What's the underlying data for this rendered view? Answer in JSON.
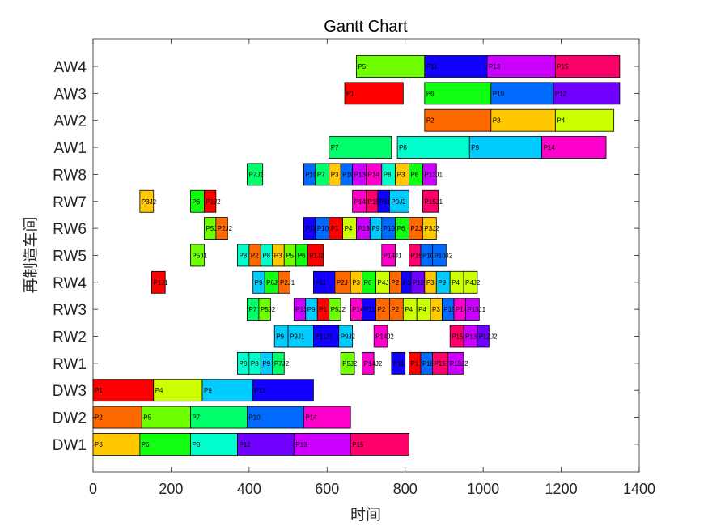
{
  "title": "Gantt Chart",
  "chart_data": {
    "type": "gantt",
    "title": "Gantt Chart",
    "xlabel": "时间",
    "ylabel": "再制造车间",
    "xlim": [
      0,
      1400
    ],
    "xticks": [
      0,
      200,
      400,
      600,
      800,
      1000,
      1200,
      1400
    ],
    "rows": [
      "DW1",
      "DW2",
      "DW3",
      "RW1",
      "RW2",
      "RW3",
      "RW4",
      "RW5",
      "RW6",
      "RW7",
      "RW8",
      "AW1",
      "AW2",
      "AW3",
      "AW4"
    ],
    "colors": {
      "P1": "#ff0000",
      "P2": "#ff6a00",
      "P3": "#ffc800",
      "P4": "#ccff00",
      "P5": "#6fff00",
      "P6": "#11ff11",
      "P7": "#00ff6a",
      "P8": "#00ffcc",
      "P9": "#00ccff",
      "P10": "#006aff",
      "P11": "#1100ff",
      "P12": "#6f00ff",
      "P13": "#cc00ff",
      "P14": "#ff00cc",
      "P15": "#ff006a"
    },
    "tasks": [
      {
        "row": "DW1",
        "label": "P3",
        "p": "P3",
        "start": 0,
        "end": 120
      },
      {
        "row": "DW1",
        "label": "P6",
        "p": "P6",
        "start": 120,
        "end": 250
      },
      {
        "row": "DW1",
        "label": "P8",
        "p": "P8",
        "start": 250,
        "end": 370
      },
      {
        "row": "DW1",
        "label": "P12",
        "p": "P12",
        "start": 370,
        "end": 515
      },
      {
        "row": "DW1",
        "label": "P13",
        "p": "P13",
        "start": 515,
        "end": 660
      },
      {
        "row": "DW1",
        "label": "P15",
        "p": "P15",
        "start": 660,
        "end": 810
      },
      {
        "row": "DW2",
        "label": "P2",
        "p": "P2",
        "start": 0,
        "end": 125
      },
      {
        "row": "DW2",
        "label": "P5",
        "p": "P5",
        "start": 125,
        "end": 250
      },
      {
        "row": "DW2",
        "label": "P7",
        "p": "P7",
        "start": 250,
        "end": 395
      },
      {
        "row": "DW2",
        "label": "P10",
        "p": "P10",
        "start": 395,
        "end": 540
      },
      {
        "row": "DW2",
        "label": "P14",
        "p": "P14",
        "start": 540,
        "end": 660
      },
      {
        "row": "DW3",
        "label": "P1",
        "p": "P1",
        "start": 0,
        "end": 155
      },
      {
        "row": "DW3",
        "label": "P4",
        "p": "P4",
        "start": 155,
        "end": 280
      },
      {
        "row": "DW3",
        "label": "P9",
        "p": "P9",
        "start": 280,
        "end": 410
      },
      {
        "row": "DW3",
        "label": "P11",
        "p": "P11",
        "start": 410,
        "end": 565
      },
      {
        "row": "RW1",
        "label": "P8",
        "p": "P8",
        "start": 370,
        "end": 400
      },
      {
        "row": "RW1",
        "label": "P8",
        "p": "P8",
        "start": 400,
        "end": 430
      },
      {
        "row": "RW1",
        "label": "P9",
        "p": "P9",
        "start": 430,
        "end": 460
      },
      {
        "row": "RW1",
        "label": "P7J2",
        "p": "P7",
        "start": 460,
        "end": 490
      },
      {
        "row": "RW1",
        "label": "P5J2",
        "p": "P5",
        "start": 635,
        "end": 670
      },
      {
        "row": "RW1",
        "label": "P14J2",
        "p": "P14",
        "start": 690,
        "end": 720
      },
      {
        "row": "RW1",
        "label": "P11",
        "p": "P11",
        "start": 765,
        "end": 800
      },
      {
        "row": "RW1",
        "label": "P1",
        "p": "P1",
        "start": 810,
        "end": 840
      },
      {
        "row": "RW1",
        "label": "P10",
        "p": "P10",
        "start": 840,
        "end": 870
      },
      {
        "row": "RW1",
        "label": "P15",
        "p": "P15",
        "start": 870,
        "end": 910
      },
      {
        "row": "RW1",
        "label": "P13J2",
        "p": "P13",
        "start": 910,
        "end": 950
      },
      {
        "row": "RW2",
        "label": "P9",
        "p": "P9",
        "start": 465,
        "end": 500
      },
      {
        "row": "RW2",
        "label": "P9J1",
        "p": "P9",
        "start": 500,
        "end": 565
      },
      {
        "row": "RW2",
        "label": "P11J1",
        "p": "P11",
        "start": 565,
        "end": 630
      },
      {
        "row": "RW2",
        "label": "P9J2",
        "p": "P9",
        "start": 630,
        "end": 665
      },
      {
        "row": "RW2",
        "label": "P14J2",
        "p": "P14",
        "start": 720,
        "end": 755
      },
      {
        "row": "RW2",
        "label": "P15",
        "p": "P15",
        "start": 915,
        "end": 950
      },
      {
        "row": "RW2",
        "label": "P13",
        "p": "P13",
        "start": 950,
        "end": 985
      },
      {
        "row": "RW2",
        "label": "P12J2",
        "p": "P12",
        "start": 985,
        "end": 1015
      },
      {
        "row": "RW3",
        "label": "P7",
        "p": "P7",
        "start": 395,
        "end": 425
      },
      {
        "row": "RW3",
        "label": "P5J2",
        "p": "P5",
        "start": 425,
        "end": 455
      },
      {
        "row": "RW3",
        "label": "P13",
        "p": "P13",
        "start": 515,
        "end": 545
      },
      {
        "row": "RW3",
        "label": "P9",
        "p": "P9",
        "start": 545,
        "end": 575
      },
      {
        "row": "RW3",
        "label": "P1",
        "p": "P1",
        "start": 575,
        "end": 605
      },
      {
        "row": "RW3",
        "label": "P5J2",
        "p": "P5",
        "start": 605,
        "end": 635
      },
      {
        "row": "RW3",
        "label": "P14",
        "p": "P14",
        "start": 660,
        "end": 690
      },
      {
        "row": "RW3",
        "label": "P11",
        "p": "P11",
        "start": 690,
        "end": 725
      },
      {
        "row": "RW3",
        "label": "P2",
        "p": "P2",
        "start": 725,
        "end": 760
      },
      {
        "row": "RW3",
        "label": "P2",
        "p": "P2",
        "start": 760,
        "end": 795
      },
      {
        "row": "RW3",
        "label": "P4",
        "p": "P4",
        "start": 795,
        "end": 830
      },
      {
        "row": "RW3",
        "label": "P4",
        "p": "P4",
        "start": 830,
        "end": 865
      },
      {
        "row": "RW3",
        "label": "P3",
        "p": "P3",
        "start": 865,
        "end": 895
      },
      {
        "row": "RW3",
        "label": "P10",
        "p": "P10",
        "start": 895,
        "end": 925
      },
      {
        "row": "RW3",
        "label": "P14",
        "p": "P14",
        "start": 925,
        "end": 955
      },
      {
        "row": "RW3",
        "label": "P13J1",
        "p": "P13",
        "start": 955,
        "end": 990
      },
      {
        "row": "RW4",
        "label": "P1J1",
        "p": "P1",
        "start": 150,
        "end": 185
      },
      {
        "row": "RW4",
        "label": "P9",
        "p": "P9",
        "start": 410,
        "end": 440
      },
      {
        "row": "RW4",
        "label": "P6J",
        "p": "P6",
        "start": 440,
        "end": 475
      },
      {
        "row": "RW4",
        "label": "P2J1",
        "p": "P2",
        "start": 475,
        "end": 505
      },
      {
        "row": "RW4",
        "label": "P11",
        "p": "P11",
        "start": 565,
        "end": 620
      },
      {
        "row": "RW4",
        "label": "P2J",
        "p": "P2",
        "start": 620,
        "end": 660
      },
      {
        "row": "RW4",
        "label": "P3",
        "p": "P3",
        "start": 660,
        "end": 690
      },
      {
        "row": "RW4",
        "label": "P6",
        "p": "P6",
        "start": 690,
        "end": 725
      },
      {
        "row": "RW4",
        "label": "P4J",
        "p": "P4",
        "start": 725,
        "end": 760
      },
      {
        "row": "RW4",
        "label": "P2",
        "p": "P2",
        "start": 760,
        "end": 790
      },
      {
        "row": "RW4",
        "label": "P11",
        "p": "P11",
        "start": 790,
        "end": 815
      },
      {
        "row": "RW4",
        "label": "P12J2",
        "p": "P12",
        "start": 815,
        "end": 850
      },
      {
        "row": "RW4",
        "label": "P3",
        "p": "P3",
        "start": 850,
        "end": 880
      },
      {
        "row": "RW4",
        "label": "P9",
        "p": "P9",
        "start": 880,
        "end": 915
      },
      {
        "row": "RW4",
        "label": "P4",
        "p": "P4",
        "start": 915,
        "end": 950
      },
      {
        "row": "RW4",
        "label": "P4J2",
        "p": "P4",
        "start": 950,
        "end": 985
      },
      {
        "row": "RW5",
        "label": "P5J1",
        "p": "P5",
        "start": 250,
        "end": 285
      },
      {
        "row": "RW5",
        "label": "P8",
        "p": "P8",
        "start": 370,
        "end": 400
      },
      {
        "row": "RW5",
        "label": "P2",
        "p": "P2",
        "start": 400,
        "end": 430
      },
      {
        "row": "RW5",
        "label": "P8",
        "p": "P8",
        "start": 430,
        "end": 460
      },
      {
        "row": "RW5",
        "label": "P3",
        "p": "P3",
        "start": 460,
        "end": 490
      },
      {
        "row": "RW5",
        "label": "P5",
        "p": "P5",
        "start": 490,
        "end": 520
      },
      {
        "row": "RW5",
        "label": "P6",
        "p": "P6",
        "start": 520,
        "end": 550
      },
      {
        "row": "RW5",
        "label": "P1J2",
        "p": "P1",
        "start": 550,
        "end": 590
      },
      {
        "row": "RW5",
        "label": "P14J1",
        "p": "P14",
        "start": 740,
        "end": 775
      },
      {
        "row": "RW5",
        "label": "P15",
        "p": "P15",
        "start": 810,
        "end": 840
      },
      {
        "row": "RW5",
        "label": "P10",
        "p": "P10",
        "start": 840,
        "end": 870
      },
      {
        "row": "RW5",
        "label": "P10J2",
        "p": "P10",
        "start": 870,
        "end": 905
      },
      {
        "row": "RW6",
        "label": "P5J",
        "p": "P5",
        "start": 285,
        "end": 315
      },
      {
        "row": "RW6",
        "label": "P2J2",
        "p": "P2",
        "start": 315,
        "end": 345
      },
      {
        "row": "RW6",
        "label": "P11",
        "p": "P11",
        "start": 540,
        "end": 570
      },
      {
        "row": "RW6",
        "label": "P10",
        "p": "P10",
        "start": 570,
        "end": 605
      },
      {
        "row": "RW6",
        "label": "P1",
        "p": "P1",
        "start": 605,
        "end": 640
      },
      {
        "row": "RW6",
        "label": "P4",
        "p": "P4",
        "start": 640,
        "end": 675
      },
      {
        "row": "RW6",
        "label": "P13",
        "p": "P13",
        "start": 675,
        "end": 710
      },
      {
        "row": "RW6",
        "label": "P9",
        "p": "P9",
        "start": 710,
        "end": 740
      },
      {
        "row": "RW6",
        "label": "P10",
        "p": "P10",
        "start": 740,
        "end": 775
      },
      {
        "row": "RW6",
        "label": "P6",
        "p": "P6",
        "start": 775,
        "end": 810
      },
      {
        "row": "RW6",
        "label": "P2J",
        "p": "P2",
        "start": 810,
        "end": 845
      },
      {
        "row": "RW6",
        "label": "P3J2",
        "p": "P3",
        "start": 845,
        "end": 880
      },
      {
        "row": "RW7",
        "label": "P3J2",
        "p": "P3",
        "start": 120,
        "end": 155
      },
      {
        "row": "RW7",
        "label": "P6",
        "p": "P6",
        "start": 250,
        "end": 285
      },
      {
        "row": "RW7",
        "label": "P1J2",
        "p": "P1",
        "start": 285,
        "end": 315
      },
      {
        "row": "RW7",
        "label": "P14",
        "p": "P14",
        "start": 665,
        "end": 700
      },
      {
        "row": "RW7",
        "label": "P15",
        "p": "P15",
        "start": 700,
        "end": 730
      },
      {
        "row": "RW7",
        "label": "P11",
        "p": "P11",
        "start": 730,
        "end": 760
      },
      {
        "row": "RW7",
        "label": "P9J2",
        "p": "P9",
        "start": 760,
        "end": 810
      },
      {
        "row": "RW7",
        "label": "P15J1",
        "p": "P15",
        "start": 845,
        "end": 885
      },
      {
        "row": "RW8",
        "label": "P7J2",
        "p": "P7",
        "start": 395,
        "end": 435
      },
      {
        "row": "RW8",
        "label": "P10",
        "p": "P10",
        "start": 540,
        "end": 570
      },
      {
        "row": "RW8",
        "label": "P7",
        "p": "P7",
        "start": 570,
        "end": 605
      },
      {
        "row": "RW8",
        "label": "P3",
        "p": "P3",
        "start": 605,
        "end": 635
      },
      {
        "row": "RW8",
        "label": "P10",
        "p": "P10",
        "start": 635,
        "end": 665
      },
      {
        "row": "RW8",
        "label": "P13",
        "p": "P13",
        "start": 665,
        "end": 700
      },
      {
        "row": "RW8",
        "label": "P14",
        "p": "P14",
        "start": 700,
        "end": 740
      },
      {
        "row": "RW8",
        "label": "P8",
        "p": "P8",
        "start": 740,
        "end": 775
      },
      {
        "row": "RW8",
        "label": "P3",
        "p": "P3",
        "start": 775,
        "end": 810
      },
      {
        "row": "RW8",
        "label": "P6",
        "p": "P6",
        "start": 810,
        "end": 845
      },
      {
        "row": "RW8",
        "label": "P13J1",
        "p": "P13",
        "start": 845,
        "end": 880
      },
      {
        "row": "AW1",
        "label": "P7",
        "p": "P7",
        "start": 605,
        "end": 765
      },
      {
        "row": "AW1",
        "label": "P8",
        "p": "P8",
        "start": 780,
        "end": 965
      },
      {
        "row": "AW1",
        "label": "P9",
        "p": "P9",
        "start": 965,
        "end": 1150
      },
      {
        "row": "AW1",
        "label": "P14",
        "p": "P14",
        "start": 1150,
        "end": 1315
      },
      {
        "row": "AW2",
        "label": "P2",
        "p": "P2",
        "start": 850,
        "end": 1020
      },
      {
        "row": "AW2",
        "label": "P3",
        "p": "P3",
        "start": 1020,
        "end": 1185
      },
      {
        "row": "AW2",
        "label": "P4",
        "p": "P4",
        "start": 1185,
        "end": 1335
      },
      {
        "row": "AW3",
        "label": "P1",
        "p": "P1",
        "start": 645,
        "end": 795
      },
      {
        "row": "AW3",
        "label": "P6",
        "p": "P6",
        "start": 850,
        "end": 1020
      },
      {
        "row": "AW3",
        "label": "P10",
        "p": "P10",
        "start": 1020,
        "end": 1180
      },
      {
        "row": "AW3",
        "label": "P12",
        "p": "P12",
        "start": 1180,
        "end": 1350
      },
      {
        "row": "AW4",
        "label": "P5",
        "p": "P5",
        "start": 675,
        "end": 850
      },
      {
        "row": "AW4",
        "label": "P11",
        "p": "P11",
        "start": 850,
        "end": 1010
      },
      {
        "row": "AW4",
        "label": "P13",
        "p": "P13",
        "start": 1010,
        "end": 1185
      },
      {
        "row": "AW4",
        "label": "P15",
        "p": "P15",
        "start": 1185,
        "end": 1350
      }
    ]
  }
}
